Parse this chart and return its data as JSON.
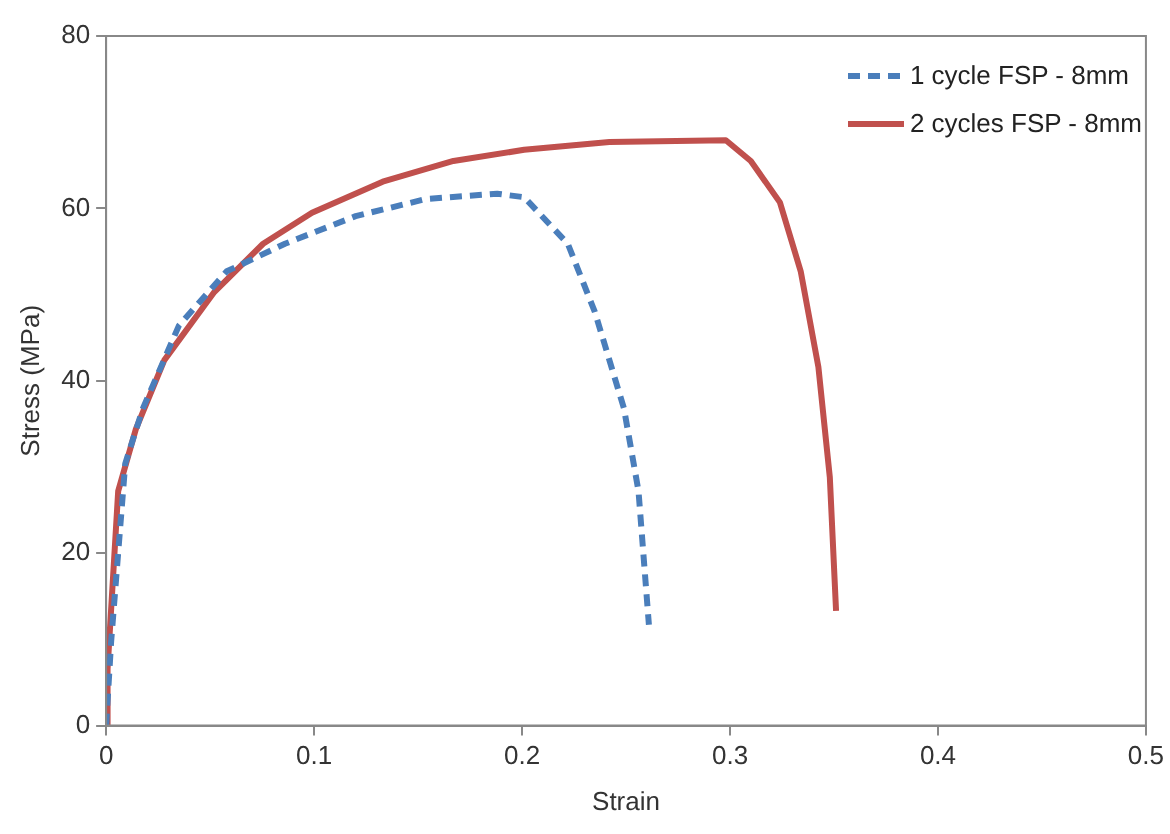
{
  "chart_data": {
    "type": "line",
    "xlabel": "Strain",
    "ylabel": "Stress (MPa)",
    "xlim": [
      0,
      0.5
    ],
    "xticks": [
      0,
      0.1,
      0.2,
      0.3,
      0.4,
      0.5
    ],
    "ylim": [
      0,
      80
    ],
    "yticks": [
      0,
      20,
      40,
      60,
      80
    ],
    "grid": false,
    "legend": "top right",
    "marker": "none",
    "series": [
      {
        "name": "1 cycle FSP - 8mm",
        "color": "#4a7ebb",
        "line_style": "dashed",
        "x": [
          0,
          0.0024,
          0.0092,
          0.0177,
          0.035,
          0.058,
          0.086,
          0.12,
          0.154,
          0.188,
          0.201,
          0.222,
          0.235,
          0.249,
          0.256,
          0.261
        ],
        "values": [
          0,
          9.7,
          30.4,
          36.8,
          46.4,
          52.7,
          55.9,
          59.1,
          61.1,
          61.7,
          61.3,
          55.9,
          48.0,
          36.8,
          27.2,
          11.7
        ]
      },
      {
        "name": "2 cycles FSP - 8mm",
        "color": "#c0504d",
        "line_style": "solid",
        "x": [
          0,
          0.0007,
          0.0058,
          0.0143,
          0.028,
          0.052,
          0.0755,
          0.099,
          0.133,
          0.167,
          0.201,
          0.242,
          0.298,
          0.31,
          0.324,
          0.334,
          0.3425,
          0.348,
          0.351
        ],
        "values": [
          0,
          6.6,
          27.2,
          34.4,
          42.4,
          50.3,
          55.9,
          59.5,
          63.1,
          65.5,
          66.8,
          67.7,
          67.9,
          65.5,
          60.7,
          52.7,
          41.6,
          28.8,
          13.3
        ]
      }
    ]
  }
}
